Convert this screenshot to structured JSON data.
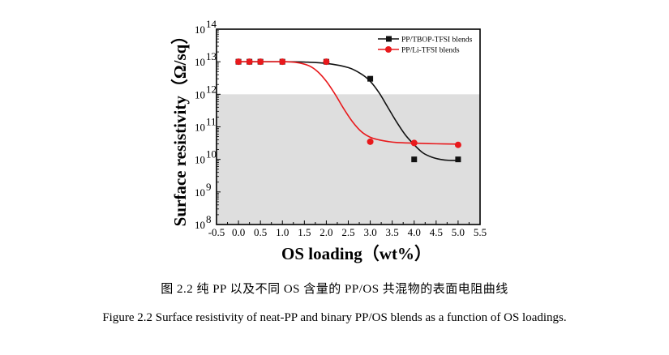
{
  "chart_data": {
    "type": "scatter",
    "title": "",
    "xlabel": "OS loading（wt%）",
    "ylabel": "Surface resistivity（Ω/sq）",
    "xlim": [
      -0.5,
      5.5
    ],
    "ylim_log10": [
      8,
      14
    ],
    "yscale": "log",
    "x_ticks": [
      "-0.5",
      "0.0",
      "0.5",
      "1.0",
      "1.5",
      "2.0",
      "2.5",
      "3.0",
      "3.5",
      "4.0",
      "4.5",
      "5.0",
      "5.5"
    ],
    "x_tick_values": [
      -0.5,
      0.0,
      0.5,
      1.0,
      1.5,
      2.0,
      2.5,
      3.0,
      3.5,
      4.0,
      4.5,
      5.0,
      5.5
    ],
    "y_ticks": [
      {
        "base": "10",
        "exp": "8",
        "value_log10": 8
      },
      {
        "base": "10",
        "exp": "9",
        "value_log10": 9
      },
      {
        "base": "10",
        "exp": "10",
        "value_log10": 10
      },
      {
        "base": "10",
        "exp": "11",
        "value_log10": 11
      },
      {
        "base": "10",
        "exp": "12",
        "value_log10": 12
      },
      {
        "base": "10",
        "exp": "13",
        "value_log10": 13
      },
      {
        "base": "10",
        "exp": "14",
        "value_log10": 14
      }
    ],
    "shaded_region": {
      "y_from_log10": 8,
      "y_to_log10": 12,
      "color": "#dedede"
    },
    "legend_position": "top-right",
    "series": [
      {
        "name": "PP/TBOP-TFSI blends",
        "color": "#111111",
        "marker": "square",
        "x": [
          0.0,
          0.25,
          0.5,
          1.0,
          2.0,
          3.0,
          4.0,
          5.0
        ],
        "y": [
          10000000000000.0,
          10000000000000.0,
          10000000000000.0,
          10000000000000.0,
          10000000000000.0,
          3000000000000.0,
          10000000000.0,
          10000000000.0
        ],
        "fit_curve": {
          "x": [
            0.0,
            1.0,
            1.5,
            2.0,
            2.5,
            2.8,
            3.0,
            3.2,
            3.4,
            3.6,
            3.8,
            4.0,
            4.2,
            4.4,
            4.6,
            4.8,
            5.0
          ],
          "y_log10": [
            13.0,
            13.0,
            12.99,
            12.95,
            12.82,
            12.62,
            12.4,
            12.05,
            11.6,
            11.15,
            10.75,
            10.45,
            10.2,
            10.07,
            10.0,
            9.97,
            9.97
          ]
        }
      },
      {
        "name": "PP/Li-TFSI blends",
        "color": "#e8191c",
        "marker": "circle",
        "x": [
          0.0,
          0.25,
          0.5,
          1.0,
          2.0,
          3.0,
          4.0,
          5.0
        ],
        "y": [
          10000000000000.0,
          10000000000000.0,
          10000000000000.0,
          10000000000000.0,
          10000000000000.0,
          35000000000.0,
          32000000000.0,
          28000000000.0
        ],
        "fit_curve": {
          "x": [
            0.0,
            1.0,
            1.3,
            1.6,
            1.8,
            2.0,
            2.2,
            2.4,
            2.6,
            2.8,
            3.0,
            3.2,
            3.4,
            3.6,
            4.0,
            4.5,
            5.0
          ],
          "y_log10": [
            13.0,
            13.0,
            12.98,
            12.88,
            12.7,
            12.4,
            12.0,
            11.55,
            11.15,
            10.85,
            10.68,
            10.6,
            10.55,
            10.52,
            10.5,
            10.48,
            10.47
          ]
        }
      }
    ]
  },
  "captions": {
    "chinese": "图 2.2 纯 PP 以及不同 OS 含量的 PP/OS 共混物的表面电阻曲线",
    "english": "Figure 2.2 Surface resistivity of neat-PP and binary PP/OS blends as a function of OS loadings."
  }
}
